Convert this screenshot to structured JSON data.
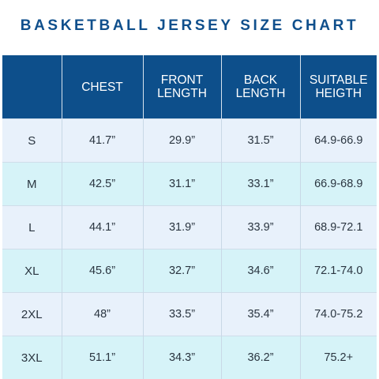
{
  "title": "BASKETBALL JERSEY SIZE CHART",
  "columns": [
    {
      "lines": [
        ""
      ]
    },
    {
      "lines": [
        "CHEST"
      ]
    },
    {
      "lines": [
        "FRONT",
        "LENGTH"
      ]
    },
    {
      "lines": [
        "BACK",
        "LENGTH"
      ]
    },
    {
      "lines": [
        "SUITABLE",
        "HEIGTH"
      ]
    }
  ],
  "rows": [
    {
      "size": "S",
      "chest": "41.7”",
      "front": "29.9”",
      "back": "31.5”",
      "height": "64.9-66.9"
    },
    {
      "size": "M",
      "chest": "42.5”",
      "front": "31.1”",
      "back": "33.1”",
      "height": "66.9-68.9"
    },
    {
      "size": "L",
      "chest": "44.1”",
      "front": "31.9”",
      "back": "33.9”",
      "height": "68.9-72.1"
    },
    {
      "size": "XL",
      "chest": "45.6”",
      "front": "32.7”",
      "back": "34.6”",
      "height": "72.1-74.0"
    },
    {
      "size": "2XL",
      "chest": "48”",
      "front": "33.5”",
      "back": "35.4”",
      "height": "74.0-75.2"
    },
    {
      "size": "3XL",
      "chest": "51.1”",
      "front": "34.3”",
      "back": "36.2”",
      "height": "75.2+"
    }
  ],
  "colors": {
    "header_bg": "#0d4f8b",
    "title_text": "#0f4f8c",
    "row_light": "#e8f1fb",
    "row_cyan": "#d6f3f8"
  }
}
